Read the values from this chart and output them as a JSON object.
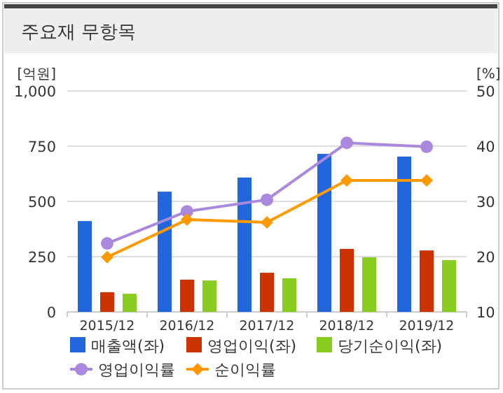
{
  "chart_data": {
    "type": "bar",
    "title": "주요재 무항목",
    "ylabel": "[억원]",
    "y2label": "[%]",
    "categories": [
      "2015/12",
      "2016/12",
      "2017/12",
      "2018/12",
      "2019/12"
    ],
    "series": [
      {
        "name": "매출액(좌)",
        "color": "#2266dd",
        "values": [
          411,
          544,
          608,
          715,
          703
        ]
      },
      {
        "name": "영업이익(좌)",
        "color": "#cc3300",
        "values": [
          89,
          146,
          177,
          285,
          278
        ]
      },
      {
        "name": "당기순이익(좌)",
        "color": "#88cc22",
        "values": [
          82,
          142,
          152,
          247,
          234
        ]
      },
      {
        "name": "영업이익률",
        "type": "line",
        "axis": "y2",
        "marker": "circle",
        "color": "#aa88dd",
        "values": [
          22.4,
          28.2,
          30.3,
          40.6,
          39.9
        ]
      },
      {
        "name": "순이익률",
        "type": "line",
        "axis": "y2",
        "marker": "diamond",
        "color": "#ff9900",
        "values": [
          19.9,
          26.7,
          26.2,
          33.8,
          33.8
        ]
      }
    ],
    "ylim": [
      0,
      1000
    ],
    "yticks": [
      0,
      {
        "value": 250,
        "label": "250"
      },
      {
        "value": 500,
        "label": "500"
      },
      {
        "value": 750,
        "label": "750"
      },
      {
        "value": 1000,
        "label": "1,000"
      }
    ],
    "y2lim": [
      10,
      50
    ],
    "y2ticks": [
      10,
      20,
      30,
      40,
      50
    ],
    "grid": "y",
    "legend": "bottom"
  }
}
